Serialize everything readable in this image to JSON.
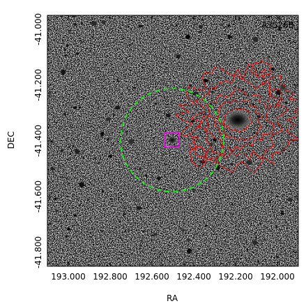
{
  "figure": {
    "cluster_label": "A3526B",
    "xlabel": "RA",
    "ylabel": "DEC",
    "x_ticks": [
      "193.000",
      "192.800",
      "192.600",
      "192.400",
      "192.200",
      "192.000"
    ],
    "y_ticks": [
      "-41.000",
      "-41.200",
      "-41.400",
      "-41.600",
      "-41.800"
    ],
    "x_range": [
      193.1,
      191.9
    ],
    "y_range": [
      -41.85,
      -40.95
    ],
    "circle_color": "#00ff00",
    "contour_color": "#ff0000",
    "box_color": "#ff00ff"
  }
}
